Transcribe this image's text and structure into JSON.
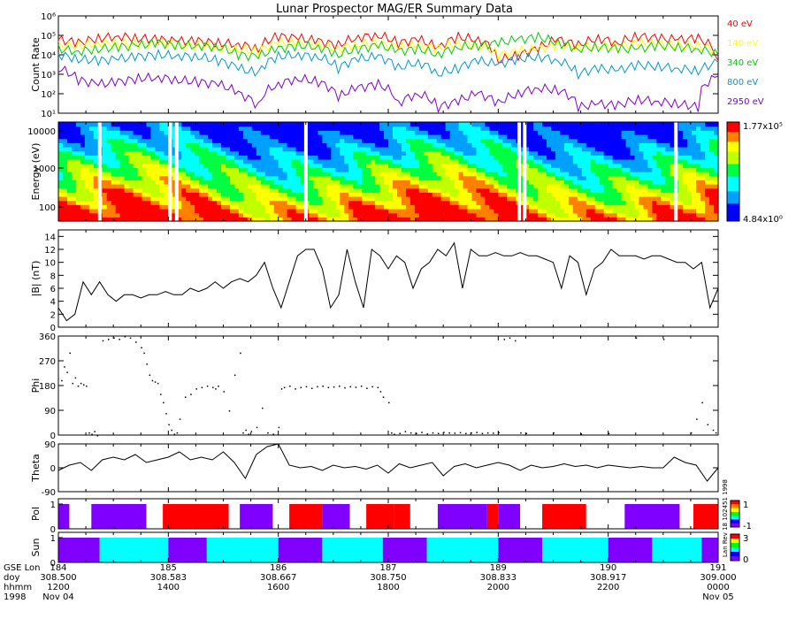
{
  "title": "Lunar Prospector MAG/ER Summary Data",
  "chart_data": [
    {
      "type": "line",
      "panel": "count_rate",
      "ylabel": "Count Rate",
      "yscale": "log",
      "ylim": [
        10,
        1000000
      ],
      "yticks": [
        "10¹",
        "10²",
        "10³",
        "10⁴",
        "10⁵",
        "10⁶"
      ],
      "series": [
        {
          "name": "40 eV",
          "color": "#ff0000",
          "values": [
            60000,
            40000,
            70000,
            90000,
            70000,
            60000,
            50000,
            50000,
            40000,
            35000,
            20000,
            90000,
            70000,
            50000,
            30000,
            80000,
            100000,
            40000,
            60000,
            20000,
            80000,
            60000,
            5000,
            9000,
            20000,
            60000,
            30000,
            70000,
            40000,
            90000,
            70000,
            60000,
            70000,
            5000
          ]
        },
        {
          "name": "140 eV",
          "color": "#ffff00",
          "values": [
            30000,
            30000,
            40000,
            40000,
            35000,
            40000,
            30000,
            30000,
            25000,
            20000,
            15000,
            40000,
            40000,
            30000,
            20000,
            35000,
            40000,
            25000,
            30000,
            20000,
            40000,
            30000,
            10000,
            15000,
            20000,
            30000,
            25000,
            30000,
            25000,
            40000,
            35000,
            30000,
            30000,
            15000
          ]
        },
        {
          "name": "340 eV",
          "color": "#00cc00",
          "values": [
            20000,
            15000,
            20000,
            25000,
            30000,
            40000,
            30000,
            30000,
            25000,
            10000,
            8000,
            20000,
            30000,
            25000,
            10000,
            20000,
            30000,
            15000,
            20000,
            10000,
            25000,
            30000,
            40000,
            60000,
            80000,
            40000,
            20000,
            25000,
            20000,
            20000,
            30000,
            25000,
            20000,
            10000
          ]
        },
        {
          "name": "800 eV",
          "color": "#0099cc",
          "values": [
            10000,
            6000,
            5000,
            6000,
            8000,
            10000,
            9000,
            8000,
            5000,
            2000,
            1000,
            8000,
            10000,
            8000,
            2000,
            6000,
            8000,
            2000,
            4000,
            1000,
            2000,
            5000,
            3000,
            6000,
            8000,
            5000,
            1000,
            2000,
            1500,
            3000,
            2500,
            2000,
            1500,
            4000
          ]
        },
        {
          "name": "2950 eV",
          "color": "#8000d0",
          "values": [
            2000,
            500,
            300,
            400,
            600,
            700,
            500,
            400,
            300,
            100,
            20,
            300,
            600,
            400,
            60,
            200,
            300,
            30,
            100,
            20,
            40,
            100,
            30,
            100,
            200,
            150,
            20,
            30,
            25,
            50,
            40,
            30,
            20,
            800
          ]
        }
      ]
    },
    {
      "type": "heatmap",
      "panel": "spectrogram",
      "ylabel": "Energy (eV)",
      "yscale": "log",
      "yticks": [
        "100",
        "1000",
        "10000"
      ],
      "colorbar": {
        "min_label": "4.84x10⁰",
        "max_label": "1.77x10⁵"
      },
      "data_gaps_hours": [
        12.72,
        14.0,
        14.12,
        16.47,
        20.35,
        20.45,
        23.2
      ]
    },
    {
      "type": "line",
      "panel": "b_magnitude",
      "ylabel": "|B| (nT)",
      "ylim": [
        0,
        15
      ],
      "yticks": [
        "0",
        "2",
        "4",
        "6",
        "8",
        "10",
        "12",
        "14"
      ],
      "x_hours": [
        12.0,
        12.15,
        12.3,
        12.45,
        12.6,
        12.75,
        12.9,
        13.05,
        13.2,
        13.35,
        13.5,
        13.65,
        13.8,
        13.95,
        14.1,
        14.25,
        14.4,
        14.55,
        14.7,
        14.85,
        15.0,
        15.15,
        15.3,
        15.45,
        15.6,
        15.75,
        15.9,
        16.05,
        16.2,
        16.35,
        16.5,
        16.65,
        16.8,
        16.95,
        17.1,
        17.25,
        17.4,
        17.55,
        17.7,
        17.85,
        18.0,
        18.15,
        18.3,
        18.45,
        18.6,
        18.75,
        18.9,
        19.05,
        19.2,
        19.35,
        19.5,
        19.65,
        19.8,
        19.95,
        20.1,
        20.25,
        20.4,
        20.55,
        20.7,
        20.85,
        21.0,
        21.15,
        21.3,
        21.45,
        21.6,
        21.75,
        21.9,
        22.05,
        22.2,
        22.35,
        22.5,
        22.65,
        22.8,
        22.95,
        23.1,
        23.25,
        23.4,
        23.55,
        23.7,
        23.85,
        24.0
      ],
      "values": [
        3,
        1,
        2,
        7,
        5,
        7,
        5,
        4,
        5,
        5,
        4.5,
        5,
        5,
        5.5,
        5,
        5,
        6,
        5.5,
        6,
        7,
        6,
        7,
        7.5,
        7,
        8,
        10,
        6,
        3,
        7,
        11,
        12,
        12,
        9,
        3,
        5,
        12,
        7,
        3,
        12,
        11,
        9,
        11,
        10,
        6,
        9,
        10,
        12,
        11,
        13,
        6,
        12,
        11,
        11,
        11.5,
        11,
        11,
        11.5,
        11,
        11,
        10.5,
        10,
        6,
        11,
        10,
        5,
        9,
        10,
        12,
        11,
        11,
        11,
        10.5,
        11,
        11,
        10.5,
        10,
        10,
        9,
        10,
        3,
        6
      ]
    },
    {
      "type": "scatter",
      "panel": "phi",
      "ylabel": "Phi",
      "ylim": [
        0,
        360
      ],
      "yticks": [
        "0",
        "90",
        "180",
        "270",
        "360"
      ],
      "points": [
        [
          12.05,
          200
        ],
        [
          12.1,
          250
        ],
        [
          12.15,
          230
        ],
        [
          12.2,
          300
        ],
        [
          12.25,
          190
        ],
        [
          12.3,
          210
        ],
        [
          12.35,
          180
        ],
        [
          12.4,
          190
        ],
        [
          12.45,
          185
        ],
        [
          12.5,
          180
        ],
        [
          12.55,
          10
        ],
        [
          12.6,
          5
        ],
        [
          12.65,
          15
        ],
        [
          12.7,
          0
        ],
        [
          12.8,
          345
        ],
        [
          12.9,
          350
        ],
        [
          13.0,
          355
        ],
        [
          13.1,
          350
        ],
        [
          13.2,
          360
        ],
        [
          13.3,
          355
        ],
        [
          13.4,
          340
        ],
        [
          13.5,
          320
        ],
        [
          13.55,
          300
        ],
        [
          13.6,
          260
        ],
        [
          13.65,
          220
        ],
        [
          13.7,
          200
        ],
        [
          13.75,
          195
        ],
        [
          13.8,
          190
        ],
        [
          13.85,
          150
        ],
        [
          13.9,
          120
        ],
        [
          13.95,
          80
        ],
        [
          14.0,
          40
        ],
        [
          14.05,
          20
        ],
        [
          14.1,
          5
        ],
        [
          14.15,
          10
        ],
        [
          14.2,
          60
        ],
        [
          14.3,
          140
        ],
        [
          14.4,
          150
        ],
        [
          14.5,
          170
        ],
        [
          14.6,
          175
        ],
        [
          14.7,
          180
        ],
        [
          14.8,
          175
        ],
        [
          14.85,
          170
        ],
        [
          14.9,
          180
        ],
        [
          15.0,
          160
        ],
        [
          15.1,
          90
        ],
        [
          15.2,
          220
        ],
        [
          15.3,
          300
        ],
        [
          15.35,
          10
        ],
        [
          15.4,
          20
        ],
        [
          15.45,
          5
        ],
        [
          15.5,
          15
        ],
        [
          15.6,
          30
        ],
        [
          15.7,
          100
        ],
        [
          15.8,
          10
        ],
        [
          15.9,
          5
        ],
        [
          16.0,
          30
        ],
        [
          16.05,
          170
        ],
        [
          16.1,
          175
        ],
        [
          16.2,
          180
        ],
        [
          16.3,
          170
        ],
        [
          16.4,
          175
        ],
        [
          16.5,
          178
        ],
        [
          16.6,
          172
        ],
        [
          16.7,
          178
        ],
        [
          16.8,
          180
        ],
        [
          16.9,
          175
        ],
        [
          17.0,
          177
        ],
        [
          17.1,
          180
        ],
        [
          17.2,
          174
        ],
        [
          17.3,
          178
        ],
        [
          17.4,
          176
        ],
        [
          17.5,
          180
        ],
        [
          17.6,
          172
        ],
        [
          17.7,
          178
        ],
        [
          17.8,
          175
        ],
        [
          17.85,
          160
        ],
        [
          17.9,
          140
        ],
        [
          18.0,
          120
        ],
        [
          18.05,
          10
        ],
        [
          18.1,
          5
        ],
        [
          18.2,
          8
        ],
        [
          18.3,
          15
        ],
        [
          18.4,
          10
        ],
        [
          18.5,
          8
        ],
        [
          18.6,
          12
        ],
        [
          18.7,
          6
        ],
        [
          18.8,
          10
        ],
        [
          18.9,
          8
        ],
        [
          19.0,
          12
        ],
        [
          19.1,
          10
        ],
        [
          19.2,
          9
        ],
        [
          19.3,
          11
        ],
        [
          19.4,
          8
        ],
        [
          19.5,
          10
        ],
        [
          19.6,
          12
        ],
        [
          19.7,
          8
        ],
        [
          19.8,
          10
        ],
        [
          19.9,
          9
        ],
        [
          20.0,
          11
        ],
        [
          20.1,
          350
        ],
        [
          20.2,
          355
        ],
        [
          20.3,
          345
        ],
        [
          20.4,
          10
        ],
        [
          20.5,
          8
        ],
        [
          21.0,
          10
        ],
        [
          21.5,
          6
        ],
        [
          22.0,
          8
        ],
        [
          22.5,
          355
        ],
        [
          23.0,
          350
        ],
        [
          23.5,
          10
        ],
        [
          23.6,
          60
        ],
        [
          23.7,
          120
        ],
        [
          23.8,
          40
        ],
        [
          23.9,
          20
        ],
        [
          23.95,
          10
        ]
      ]
    },
    {
      "type": "line",
      "panel": "theta",
      "ylabel": "Theta",
      "ylim": [
        -90,
        90
      ],
      "yticks": [
        "-90",
        "0",
        "90"
      ],
      "x_hours": [
        12.0,
        12.2,
        12.4,
        12.6,
        12.8,
        13.0,
        13.2,
        13.4,
        13.6,
        13.8,
        14.0,
        14.2,
        14.4,
        14.6,
        14.8,
        15.0,
        15.2,
        15.4,
        15.6,
        15.8,
        16.0,
        16.2,
        16.4,
        16.6,
        16.8,
        17.0,
        17.2,
        17.4,
        17.6,
        17.8,
        18.0,
        18.2,
        18.4,
        18.6,
        18.8,
        19.0,
        19.2,
        19.4,
        19.6,
        19.8,
        20.0,
        20.2,
        20.4,
        20.6,
        20.8,
        21.0,
        21.2,
        21.4,
        21.6,
        21.8,
        22.0,
        22.2,
        22.4,
        22.6,
        22.8,
        23.0,
        23.2,
        23.4,
        23.6,
        23.8,
        24.0
      ],
      "values": [
        -10,
        10,
        20,
        -10,
        30,
        40,
        30,
        50,
        20,
        30,
        40,
        60,
        30,
        40,
        30,
        60,
        20,
        -40,
        50,
        80,
        90,
        10,
        0,
        5,
        -10,
        10,
        0,
        5,
        -5,
        10,
        -20,
        15,
        0,
        10,
        20,
        -30,
        5,
        15,
        0,
        10,
        20,
        10,
        -10,
        10,
        0,
        5,
        15,
        5,
        10,
        0,
        10,
        5,
        0,
        5,
        0,
        0,
        40,
        20,
        10,
        -50,
        0
      ]
    },
    {
      "type": "heatmap",
      "panel": "pol",
      "ylabel": "Pol",
      "yticks": [
        "0",
        "1"
      ],
      "colorbar": {
        "min_label": "-1",
        "max_label": "1"
      },
      "segments_hours": [
        [
          12.0,
          12.2,
          "purple"
        ],
        [
          12.2,
          12.6,
          "white"
        ],
        [
          12.6,
          13.6,
          "purple"
        ],
        [
          13.6,
          13.9,
          "white"
        ],
        [
          13.9,
          15.1,
          "red"
        ],
        [
          15.1,
          15.3,
          "white"
        ],
        [
          15.3,
          15.9,
          "purple"
        ],
        [
          15.9,
          16.2,
          "white"
        ],
        [
          16.2,
          16.8,
          "red"
        ],
        [
          16.8,
          17.3,
          "purple"
        ],
        [
          17.3,
          17.6,
          "white"
        ],
        [
          17.6,
          18.1,
          "red"
        ],
        [
          18.1,
          18.4,
          "red"
        ],
        [
          18.4,
          18.9,
          "white"
        ],
        [
          18.9,
          19.8,
          "purple"
        ],
        [
          19.8,
          20.0,
          "red"
        ],
        [
          20.0,
          20.4,
          "purple"
        ],
        [
          20.4,
          20.8,
          "white"
        ],
        [
          20.8,
          21.6,
          "red"
        ],
        [
          21.6,
          22.3,
          "white"
        ],
        [
          22.3,
          23.3,
          "purple"
        ],
        [
          23.3,
          23.55,
          "white"
        ],
        [
          23.55,
          24.0,
          "red"
        ]
      ]
    },
    {
      "type": "heatmap",
      "panel": "sun",
      "ylabel": "Sun",
      "yticks": [
        "0",
        "1"
      ],
      "colorbar": {
        "min_label": "0",
        "max_label": "3"
      },
      "segments_hours": [
        [
          12.0,
          12.75,
          "purple"
        ],
        [
          12.75,
          14.0,
          "cyan"
        ],
        [
          14.0,
          14.7,
          "purple"
        ],
        [
          14.7,
          16.0,
          "cyan"
        ],
        [
          16.0,
          16.8,
          "purple"
        ],
        [
          16.8,
          17.9,
          "cyan"
        ],
        [
          17.9,
          18.7,
          "purple"
        ],
        [
          18.7,
          20.0,
          "cyan"
        ],
        [
          20.0,
          20.8,
          "purple"
        ],
        [
          20.8,
          22.0,
          "cyan"
        ],
        [
          22.0,
          22.8,
          "purple"
        ],
        [
          22.8,
          23.7,
          "cyan"
        ],
        [
          23.7,
          24.0,
          "purple"
        ]
      ]
    }
  ],
  "x_axis": {
    "row_labels": [
      "GSE Lon",
      "doy",
      "hhmm",
      "1998"
    ],
    "ticks": [
      {
        "hour": 12.0,
        "lon": "184",
        "doy": "308.500",
        "hhmm": "1200",
        "date": "Nov 04"
      },
      {
        "hour": 14.0,
        "lon": "185",
        "doy": "308.583",
        "hhmm": "1400",
        "date": ""
      },
      {
        "hour": 16.0,
        "lon": "186",
        "doy": "308.667",
        "hhmm": "1600",
        "date": ""
      },
      {
        "hour": 18.0,
        "lon": "187",
        "doy": "308.750",
        "hhmm": "1800",
        "date": ""
      },
      {
        "hour": 20.0,
        "lon": "189",
        "doy": "308.833",
        "hhmm": "2000",
        "date": ""
      },
      {
        "hour": 22.0,
        "lon": "190",
        "doy": "308.917",
        "hhmm": "2200",
        "date": ""
      },
      {
        "hour": 24.0,
        "lon": "191",
        "doy": "309.000",
        "hhmm": "0000",
        "date": "Nov 05"
      }
    ]
  },
  "colors": {
    "purple": "#8000ff",
    "red": "#ff0000",
    "cyan": "#00ffff",
    "white": "#ffffff"
  },
  "side_note": "Lan Rev 18 102451 1998"
}
